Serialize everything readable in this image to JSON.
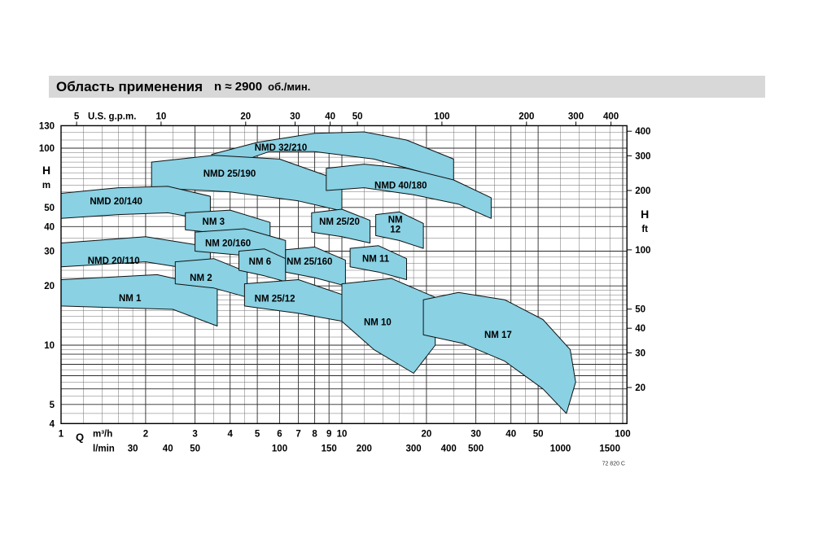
{
  "title": {
    "main": "Область применения",
    "rpm": "n ≈ 2900",
    "rpm_units": "об./мин."
  },
  "footnote": "72 820 C",
  "colors": {
    "title_bg": "#d8d8d8",
    "region_fill": "#89d1e3",
    "region_stroke": "#111111",
    "grid_minor": "#6f6f6f",
    "grid_major": "#2b2b2b",
    "frame": "#000000"
  },
  "chart_data": {
    "type": "area",
    "title": "Область применения n ≈ 2900 об./мин.",
    "x_axis": {
      "top_label": "U.S. g.p.m.",
      "top_ticks_usgpm": [
        5,
        10,
        20,
        30,
        40,
        50,
        100,
        200,
        300,
        400
      ],
      "gpm_per_m3h": 4.403,
      "bottom_label": "Q",
      "bottom_unit_primary": "m³/h",
      "bottom_ticks_m3h": [
        1,
        2,
        3,
        4,
        5,
        6,
        7,
        8,
        9,
        10,
        20,
        30,
        40,
        50,
        100
      ],
      "bottom_unit_secondary": "l/min",
      "bottom_ticks_lmin": [
        30,
        40,
        50,
        100,
        150,
        200,
        300,
        400,
        500,
        1000,
        1500
      ],
      "lmin_to_m3h": 0.06,
      "q_m3h_range": [
        1,
        103.5
      ]
    },
    "y_axis": {
      "left_label": "H",
      "left_unit": "m",
      "left_ticks_m": [
        130,
        100,
        50,
        40,
        30,
        20,
        10,
        5,
        4
      ],
      "right_label": "H",
      "right_unit": "ft",
      "right_ticks_ft": [
        400,
        300,
        200,
        100,
        50,
        40,
        30,
        20
      ],
      "ft_per_m": 3.2808,
      "h_m_range": [
        4,
        130
      ]
    },
    "grid": {
      "v_major": [
        1,
        2,
        3,
        4,
        5,
        6,
        7,
        8,
        9,
        10,
        20,
        30,
        40,
        50,
        100
      ],
      "v_minor": [
        1.2,
        1.4,
        1.6,
        1.8,
        2.5,
        3.5,
        4.5,
        12,
        14,
        16,
        18,
        25,
        35,
        45,
        60,
        70,
        80,
        90
      ],
      "h_major": [
        4,
        5,
        6,
        7,
        8,
        9,
        10,
        20,
        30,
        40,
        50,
        100,
        130
      ],
      "h_minor": [
        4.5,
        5.5,
        6.5,
        7.5,
        8.5,
        9.5,
        11,
        12,
        13,
        14,
        15,
        16,
        17,
        18,
        19,
        22,
        24,
        26,
        28,
        35,
        45,
        55,
        60,
        65,
        70,
        75,
        80,
        85,
        90,
        95,
        110,
        120
      ]
    },
    "regions": [
      {
        "name": "NMD 32/210",
        "label_q": 6.06,
        "label_h": 101,
        "points": [
          [
            3.44,
            93
          ],
          [
            5,
            107
          ],
          [
            8,
            119
          ],
          [
            12,
            121
          ],
          [
            17,
            110
          ],
          [
            25,
            88
          ],
          [
            25,
            62
          ],
          [
            19,
            76
          ],
          [
            13,
            88
          ],
          [
            8,
            96
          ],
          [
            5.5,
            96
          ],
          [
            3.44,
            76
          ]
        ]
      },
      {
        "name": "NMD 25/190",
        "label_q": 3.98,
        "label_h": 74.5,
        "points": [
          [
            2.1,
            85
          ],
          [
            3.5,
            92
          ],
          [
            6,
            88
          ],
          [
            10,
            68
          ],
          [
            10,
            48
          ],
          [
            7,
            54
          ],
          [
            4,
            60
          ],
          [
            2.1,
            63
          ]
        ]
      },
      {
        "name": "NMD 40/180",
        "label_q": 16.2,
        "label_h": 65,
        "points": [
          [
            8.8,
            79
          ],
          [
            12,
            83
          ],
          [
            17,
            79
          ],
          [
            25,
            69
          ],
          [
            34,
            56
          ],
          [
            34,
            44
          ],
          [
            26,
            52
          ],
          [
            18,
            58
          ],
          [
            12,
            63
          ],
          [
            8.8,
            61
          ]
        ]
      },
      {
        "name": "NMD 20/140",
        "label_q": 1.57,
        "label_h": 54,
        "points": [
          [
            1,
            59
          ],
          [
            1.6,
            63
          ],
          [
            2.4,
            64
          ],
          [
            3.4,
            57
          ],
          [
            3.4,
            43
          ],
          [
            2.4,
            47
          ],
          [
            1.6,
            46
          ],
          [
            1,
            44
          ]
        ]
      },
      {
        "name": "NMD 20/110",
        "label_q": 1.54,
        "label_h": 26.9,
        "points": [
          [
            1,
            33
          ],
          [
            2,
            35.5
          ],
          [
            3.4,
            31.5
          ],
          [
            3.4,
            23.5
          ],
          [
            2,
            26.5
          ],
          [
            1,
            25
          ]
        ]
      },
      {
        "name": "NM 1",
        "label_q": 1.76,
        "label_h": 17.4,
        "points": [
          [
            1,
            21.5
          ],
          [
            2.2,
            22.8
          ],
          [
            3.6,
            19.5
          ],
          [
            3.6,
            12.5
          ],
          [
            2.5,
            15.2
          ],
          [
            1,
            15.8
          ]
        ]
      },
      {
        "name": "NM 2",
        "label_q": 3.15,
        "label_h": 22,
        "points": [
          [
            2.55,
            26.5
          ],
          [
            3.5,
            27.5
          ],
          [
            4.6,
            23.5
          ],
          [
            4.6,
            17.5
          ],
          [
            3.5,
            19.5
          ],
          [
            2.55,
            20.5
          ]
        ]
      },
      {
        "name": "NM 3",
        "label_q": 3.49,
        "label_h": 42.5,
        "points": [
          [
            2.77,
            47
          ],
          [
            4,
            48.5
          ],
          [
            5.55,
            42
          ],
          [
            5.55,
            34
          ],
          [
            4,
            36.5
          ],
          [
            2.77,
            38.5
          ]
        ]
      },
      {
        "name": "NM 20/160",
        "label_q": 3.93,
        "label_h": 33,
        "points": [
          [
            3,
            37.5
          ],
          [
            4.5,
            39
          ],
          [
            6.3,
            34
          ],
          [
            6.3,
            26
          ],
          [
            4.5,
            28.5
          ],
          [
            3,
            30
          ]
        ]
      },
      {
        "name": "NM 6",
        "label_q": 5.11,
        "label_h": 26.7,
        "points": [
          [
            4.3,
            30
          ],
          [
            5.3,
            30.8
          ],
          [
            6.3,
            27.5
          ],
          [
            6.3,
            21
          ],
          [
            5.3,
            22.5
          ],
          [
            4.3,
            24
          ]
        ]
      },
      {
        "name": "NM 25/160",
        "label_q": 7.67,
        "label_h": 26.7,
        "points": [
          [
            6.3,
            30.5
          ],
          [
            8,
            31.5
          ],
          [
            10.3,
            27
          ],
          [
            10.3,
            20
          ],
          [
            8,
            22
          ],
          [
            6.3,
            23.5
          ]
        ]
      },
      {
        "name": "NM 25/12",
        "label_q": 5.77,
        "label_h": 17.3,
        "points": [
          [
            4.5,
            20.5
          ],
          [
            7,
            21.5
          ],
          [
            10.7,
            17.5
          ],
          [
            10.7,
            13
          ],
          [
            7,
            14.5
          ],
          [
            4.5,
            15.8
          ]
        ]
      },
      {
        "name": "NM 25/20",
        "label_q": 9.8,
        "label_h": 42.5,
        "points": [
          [
            7.8,
            47
          ],
          [
            10,
            49
          ],
          [
            12.6,
            43
          ],
          [
            12.6,
            33
          ],
          [
            10,
            35.5
          ],
          [
            7.8,
            37.5
          ]
        ]
      },
      {
        "name": "NM 12",
        "label_lines": [
          "NM",
          "12"
        ],
        "label_q": 15.5,
        "label_h": 41,
        "points": [
          [
            13.2,
            46
          ],
          [
            16,
            47.5
          ],
          [
            19.5,
            41.5
          ],
          [
            19.5,
            31
          ],
          [
            16,
            34
          ],
          [
            13.2,
            36
          ]
        ]
      },
      {
        "name": "NM 11",
        "label_q": 13.2,
        "label_h": 27.5,
        "points": [
          [
            10.7,
            31
          ],
          [
            13.5,
            32
          ],
          [
            17,
            27.5
          ],
          [
            17,
            21.5
          ],
          [
            13.5,
            23.5
          ],
          [
            10.7,
            25
          ]
        ]
      },
      {
        "name": "NM 10",
        "label_q": 13.4,
        "label_h": 13.1,
        "points": [
          [
            10,
            20.5
          ],
          [
            15,
            21.8
          ],
          [
            21.5,
            17.5
          ],
          [
            21.5,
            10
          ],
          [
            18,
            7.2
          ],
          [
            13,
            9.5
          ],
          [
            10,
            13.2
          ]
        ]
      },
      {
        "name": "NM 17",
        "label_q": 36,
        "label_h": 11.3,
        "points": [
          [
            19.5,
            17
          ],
          [
            26,
            18.5
          ],
          [
            38,
            17
          ],
          [
            52,
            13.5
          ],
          [
            65,
            9.5
          ],
          [
            68,
            6.5
          ],
          [
            63,
            4.5
          ],
          [
            52,
            6
          ],
          [
            38,
            8.3
          ],
          [
            27,
            10.2
          ],
          [
            19.5,
            11.3
          ]
        ]
      }
    ]
  }
}
